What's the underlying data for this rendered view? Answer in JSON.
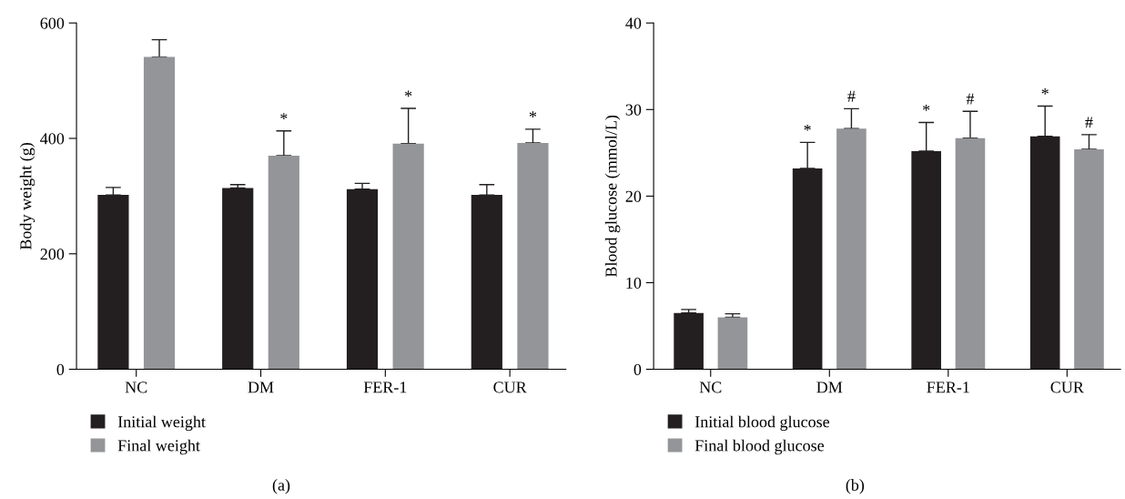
{
  "chart_data": [
    {
      "type": "bar",
      "ylabel": "Body weight (g)",
      "categories": [
        "NC",
        "DM",
        "FER-1",
        "CUR"
      ],
      "ylim": [
        0,
        600
      ],
      "yticks": [
        0,
        200,
        400,
        600
      ],
      "grid": false,
      "legend": "bottom left",
      "series": [
        {
          "name": "Initial weight",
          "color": "#231f20",
          "values": [
            302,
            314,
            312,
            302
          ],
          "errors": [
            [
              302,
              315
            ],
            [
              314,
              320
            ],
            [
              312,
              322
            ],
            [
              302,
              320
            ]
          ]
        },
        {
          "name": "Final weight",
          "color": "#939598",
          "values": [
            541,
            370,
            391,
            392
          ],
          "errors": [
            [
              541,
              571
            ],
            [
              370,
              413
            ],
            [
              391,
              452
            ],
            [
              392,
              416
            ]
          ]
        }
      ],
      "annotations": [
        "*",
        "*",
        "*",
        "(a)"
      ]
    },
    {
      "type": "bar",
      "ylabel": "Blood glucose (mmol/L)",
      "categories": [
        "NC",
        "DM",
        "FER-1",
        "CUR"
      ],
      "ylim": [
        0,
        40
      ],
      "yticks": [
        0,
        10,
        20,
        30,
        40
      ],
      "grid": false,
      "legend": "bottom left",
      "series": [
        {
          "name": "Initial blood glucose",
          "color": "#231f20",
          "values": [
            6.5,
            23.2,
            25.2,
            26.9
          ],
          "errors": [
            [
              6.5,
              6.9
            ],
            [
              23.2,
              26.2
            ],
            [
              25.2,
              28.5
            ],
            [
              26.9,
              30.4
            ]
          ]
        },
        {
          "name": "Final blood glucose",
          "color": "#939598",
          "values": [
            6.0,
            27.8,
            26.7,
            25.4
          ],
          "errors": [
            [
              6.0,
              6.4
            ],
            [
              27.8,
              30.1
            ],
            [
              26.7,
              29.8
            ],
            [
              25.4,
              27.1
            ]
          ]
        }
      ],
      "annotations": [
        "*",
        "#",
        "*",
        "#",
        "*",
        "#",
        "(b)"
      ]
    }
  ]
}
